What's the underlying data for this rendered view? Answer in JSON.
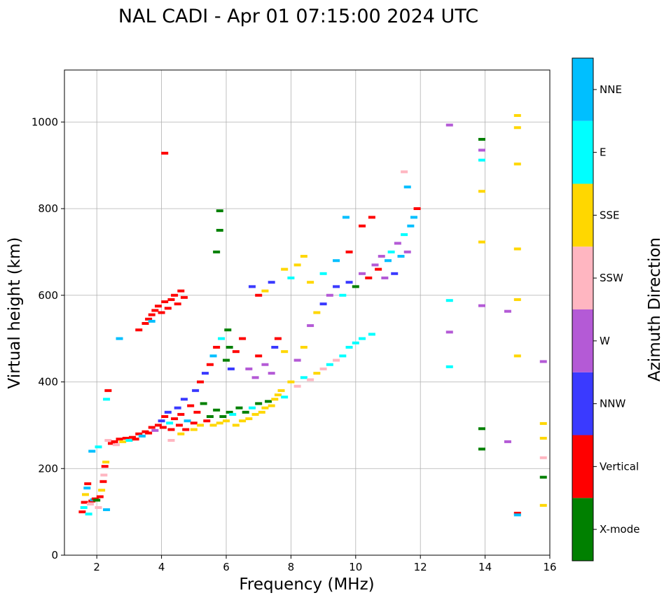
{
  "chart_data": {
    "type": "scatter",
    "title": "NAL CADI - Apr 01 07:15:00 2024 UTC",
    "xlabel": "Frequency (MHz)",
    "ylabel": "Virtual height (km)",
    "xlim": [
      1,
      16
    ],
    "ylim": [
      0,
      1120
    ],
    "xticks": [
      2,
      4,
      6,
      8,
      10,
      12,
      14,
      16
    ],
    "yticks": [
      0,
      200,
      400,
      600,
      800,
      1000
    ],
    "grid": true,
    "colorbar": {
      "label": "Azimuth Direction",
      "categories": [
        {
          "name": "X-mode",
          "color": "#008000"
        },
        {
          "name": "Vertical",
          "color": "#ff0000"
        },
        {
          "name": "NNW",
          "color": "#3a3aff"
        },
        {
          "name": "W",
          "color": "#b45ad6"
        },
        {
          "name": "SSW",
          "color": "#ffb6c1"
        },
        {
          "name": "SSE",
          "color": "#ffd700"
        },
        {
          "name": "E",
          "color": "#00ffff"
        },
        {
          "name": "NNE",
          "color": "#00bfff"
        }
      ]
    },
    "points": [
      {
        "x": 1.55,
        "y": 100,
        "d": "Vertical"
      },
      {
        "x": 1.6,
        "y": 110,
        "d": "E"
      },
      {
        "x": 1.62,
        "y": 122,
        "d": "Vertical"
      },
      {
        "x": 1.65,
        "y": 140,
        "d": "SSE"
      },
      {
        "x": 1.7,
        "y": 155,
        "d": "NNE"
      },
      {
        "x": 1.72,
        "y": 165,
        "d": "Vertical"
      },
      {
        "x": 1.75,
        "y": 95,
        "d": "E"
      },
      {
        "x": 1.8,
        "y": 118,
        "d": "SSW"
      },
      {
        "x": 1.85,
        "y": 125,
        "d": "Vertical"
      },
      {
        "x": 1.9,
        "y": 128,
        "d": "NNE"
      },
      {
        "x": 1.95,
        "y": 130,
        "d": "Vertical"
      },
      {
        "x": 2.0,
        "y": 127,
        "d": "X-mode"
      },
      {
        "x": 2.05,
        "y": 110,
        "d": "SSW"
      },
      {
        "x": 2.1,
        "y": 135,
        "d": "Vertical"
      },
      {
        "x": 2.15,
        "y": 150,
        "d": "SSE"
      },
      {
        "x": 2.2,
        "y": 170,
        "d": "Vertical"
      },
      {
        "x": 2.22,
        "y": 185,
        "d": "SSW"
      },
      {
        "x": 2.25,
        "y": 205,
        "d": "Vertical"
      },
      {
        "x": 2.28,
        "y": 215,
        "d": "SSE"
      },
      {
        "x": 2.3,
        "y": 105,
        "d": "NNE"
      },
      {
        "x": 1.85,
        "y": 240,
        "d": "NNE"
      },
      {
        "x": 2.05,
        "y": 250,
        "d": "E"
      },
      {
        "x": 2.3,
        "y": 360,
        "d": "E"
      },
      {
        "x": 2.35,
        "y": 380,
        "d": "Vertical"
      },
      {
        "x": 2.35,
        "y": 265,
        "d": "SSW"
      },
      {
        "x": 2.45,
        "y": 258,
        "d": "Vertical"
      },
      {
        "x": 2.55,
        "y": 262,
        "d": "Vertical"
      },
      {
        "x": 2.6,
        "y": 255,
        "d": "SSW"
      },
      {
        "x": 2.7,
        "y": 268,
        "d": "Vertical"
      },
      {
        "x": 2.8,
        "y": 262,
        "d": "SSE"
      },
      {
        "x": 2.9,
        "y": 270,
        "d": "Vertical"
      },
      {
        "x": 3.0,
        "y": 265,
        "d": "E"
      },
      {
        "x": 3.1,
        "y": 272,
        "d": "Vertical"
      },
      {
        "x": 3.2,
        "y": 268,
        "d": "Vertical"
      },
      {
        "x": 3.3,
        "y": 280,
        "d": "Vertical"
      },
      {
        "x": 3.4,
        "y": 275,
        "d": "NNE"
      },
      {
        "x": 3.5,
        "y": 285,
        "d": "Vertical"
      },
      {
        "x": 3.6,
        "y": 282,
        "d": "Vertical"
      },
      {
        "x": 3.7,
        "y": 295,
        "d": "Vertical"
      },
      {
        "x": 3.8,
        "y": 288,
        "d": "W"
      },
      {
        "x": 3.9,
        "y": 300,
        "d": "Vertical"
      },
      {
        "x": 4.0,
        "y": 310,
        "d": "NNW"
      },
      {
        "x": 4.05,
        "y": 295,
        "d": "Vertical"
      },
      {
        "x": 4.1,
        "y": 320,
        "d": "Vertical"
      },
      {
        "x": 4.2,
        "y": 330,
        "d": "NNW"
      },
      {
        "x": 4.25,
        "y": 305,
        "d": "E"
      },
      {
        "x": 4.3,
        "y": 290,
        "d": "Vertical"
      },
      {
        "x": 4.4,
        "y": 315,
        "d": "Vertical"
      },
      {
        "x": 4.5,
        "y": 340,
        "d": "NNW"
      },
      {
        "x": 4.55,
        "y": 300,
        "d": "Vertical"
      },
      {
        "x": 4.6,
        "y": 325,
        "d": "Vertical"
      },
      {
        "x": 4.7,
        "y": 360,
        "d": "NNW"
      },
      {
        "x": 4.75,
        "y": 290,
        "d": "Vertical"
      },
      {
        "x": 4.8,
        "y": 310,
        "d": "NNE"
      },
      {
        "x": 4.9,
        "y": 345,
        "d": "Vertical"
      },
      {
        "x": 5.0,
        "y": 305,
        "d": "Vertical"
      },
      {
        "x": 5.05,
        "y": 380,
        "d": "NNW"
      },
      {
        "x": 5.1,
        "y": 330,
        "d": "Vertical"
      },
      {
        "x": 5.2,
        "y": 300,
        "d": "SSE"
      },
      {
        "x": 5.3,
        "y": 350,
        "d": "X-mode"
      },
      {
        "x": 5.4,
        "y": 310,
        "d": "Vertical"
      },
      {
        "x": 5.5,
        "y": 320,
        "d": "X-mode"
      },
      {
        "x": 5.6,
        "y": 300,
        "d": "SSE"
      },
      {
        "x": 5.7,
        "y": 335,
        "d": "X-mode"
      },
      {
        "x": 5.8,
        "y": 305,
        "d": "SSE"
      },
      {
        "x": 5.9,
        "y": 320,
        "d": "X-mode"
      },
      {
        "x": 6.0,
        "y": 310,
        "d": "SSE"
      },
      {
        "x": 6.1,
        "y": 330,
        "d": "X-mode"
      },
      {
        "x": 6.2,
        "y": 325,
        "d": "E"
      },
      {
        "x": 6.3,
        "y": 300,
        "d": "SSE"
      },
      {
        "x": 6.4,
        "y": 340,
        "d": "X-mode"
      },
      {
        "x": 6.5,
        "y": 310,
        "d": "SSE"
      },
      {
        "x": 6.6,
        "y": 330,
        "d": "X-mode"
      },
      {
        "x": 6.7,
        "y": 315,
        "d": "SSE"
      },
      {
        "x": 6.8,
        "y": 340,
        "d": "E"
      },
      {
        "x": 6.9,
        "y": 325,
        "d": "SSE"
      },
      {
        "x": 7.0,
        "y": 350,
        "d": "X-mode"
      },
      {
        "x": 7.1,
        "y": 330,
        "d": "SSE"
      },
      {
        "x": 7.2,
        "y": 340,
        "d": "SSE"
      },
      {
        "x": 7.3,
        "y": 355,
        "d": "X-mode"
      },
      {
        "x": 7.4,
        "y": 345,
        "d": "SSE"
      },
      {
        "x": 7.5,
        "y": 360,
        "d": "SSE"
      },
      {
        "x": 7.6,
        "y": 370,
        "d": "SSE"
      },
      {
        "x": 7.7,
        "y": 380,
        "d": "SSE"
      },
      {
        "x": 7.8,
        "y": 365,
        "d": "E"
      },
      {
        "x": 4.3,
        "y": 265,
        "d": "SSW"
      },
      {
        "x": 4.6,
        "y": 280,
        "d": "SSE"
      },
      {
        "x": 5.0,
        "y": 290,
        "d": "SSE"
      },
      {
        "x": 5.2,
        "y": 400,
        "d": "Vertical"
      },
      {
        "x": 5.35,
        "y": 420,
        "d": "NNW"
      },
      {
        "x": 5.5,
        "y": 440,
        "d": "Vertical"
      },
      {
        "x": 5.6,
        "y": 460,
        "d": "NNE"
      },
      {
        "x": 5.7,
        "y": 480,
        "d": "Vertical"
      },
      {
        "x": 5.85,
        "y": 500,
        "d": "E"
      },
      {
        "x": 6.0,
        "y": 450,
        "d": "X-mode"
      },
      {
        "x": 6.05,
        "y": 520,
        "d": "X-mode"
      },
      {
        "x": 6.1,
        "y": 480,
        "d": "X-mode"
      },
      {
        "x": 6.15,
        "y": 430,
        "d": "NNW"
      },
      {
        "x": 6.3,
        "y": 470,
        "d": "Vertical"
      },
      {
        "x": 6.5,
        "y": 500,
        "d": "Vertical"
      },
      {
        "x": 6.7,
        "y": 430,
        "d": "W"
      },
      {
        "x": 6.9,
        "y": 410,
        "d": "W"
      },
      {
        "x": 7.0,
        "y": 460,
        "d": "Vertical"
      },
      {
        "x": 7.2,
        "y": 440,
        "d": "W"
      },
      {
        "x": 7.4,
        "y": 420,
        "d": "W"
      },
      {
        "x": 7.5,
        "y": 480,
        "d": "NNW"
      },
      {
        "x": 7.6,
        "y": 500,
        "d": "Vertical"
      },
      {
        "x": 7.8,
        "y": 470,
        "d": "SSE"
      },
      {
        "x": 8.0,
        "y": 400,
        "d": "SSE"
      },
      {
        "x": 8.2,
        "y": 390,
        "d": "SSW"
      },
      {
        "x": 8.4,
        "y": 410,
        "d": "E"
      },
      {
        "x": 8.6,
        "y": 405,
        "d": "SSW"
      },
      {
        "x": 8.8,
        "y": 420,
        "d": "SSE"
      },
      {
        "x": 9.0,
        "y": 430,
        "d": "SSW"
      },
      {
        "x": 9.2,
        "y": 440,
        "d": "E"
      },
      {
        "x": 9.4,
        "y": 450,
        "d": "SSW"
      },
      {
        "x": 9.6,
        "y": 460,
        "d": "E"
      },
      {
        "x": 9.8,
        "y": 480,
        "d": "E"
      },
      {
        "x": 10.0,
        "y": 490,
        "d": "E"
      },
      {
        "x": 10.2,
        "y": 500,
        "d": "E"
      },
      {
        "x": 10.5,
        "y": 510,
        "d": "E"
      },
      {
        "x": 8.2,
        "y": 450,
        "d": "W"
      },
      {
        "x": 8.4,
        "y": 480,
        "d": "SSE"
      },
      {
        "x": 8.6,
        "y": 530,
        "d": "W"
      },
      {
        "x": 8.8,
        "y": 560,
        "d": "SSE"
      },
      {
        "x": 9.0,
        "y": 580,
        "d": "NNW"
      },
      {
        "x": 9.2,
        "y": 600,
        "d": "W"
      },
      {
        "x": 9.4,
        "y": 620,
        "d": "NNW"
      },
      {
        "x": 9.6,
        "y": 600,
        "d": "E"
      },
      {
        "x": 9.8,
        "y": 630,
        "d": "NNW"
      },
      {
        "x": 10.0,
        "y": 620,
        "d": "X-mode"
      },
      {
        "x": 10.2,
        "y": 650,
        "d": "W"
      },
      {
        "x": 10.4,
        "y": 640,
        "d": "Vertical"
      },
      {
        "x": 10.6,
        "y": 670,
        "d": "W"
      },
      {
        "x": 10.7,
        "y": 660,
        "d": "Vertical"
      },
      {
        "x": 10.8,
        "y": 690,
        "d": "W"
      },
      {
        "x": 10.9,
        "y": 640,
        "d": "W"
      },
      {
        "x": 11.0,
        "y": 680,
        "d": "NNE"
      },
      {
        "x": 11.1,
        "y": 700,
        "d": "E"
      },
      {
        "x": 11.2,
        "y": 650,
        "d": "NNW"
      },
      {
        "x": 11.3,
        "y": 720,
        "d": "W"
      },
      {
        "x": 11.4,
        "y": 690,
        "d": "NNE"
      },
      {
        "x": 11.5,
        "y": 740,
        "d": "E"
      },
      {
        "x": 11.6,
        "y": 700,
        "d": "W"
      },
      {
        "x": 11.7,
        "y": 760,
        "d": "NNE"
      },
      {
        "x": 11.8,
        "y": 780,
        "d": "NNE"
      },
      {
        "x": 11.9,
        "y": 800,
        "d": "Vertical"
      },
      {
        "x": 11.6,
        "y": 850,
        "d": "NNE"
      },
      {
        "x": 11.5,
        "y": 885,
        "d": "SSW"
      },
      {
        "x": 10.5,
        "y": 780,
        "d": "Vertical"
      },
      {
        "x": 10.2,
        "y": 760,
        "d": "Vertical"
      },
      {
        "x": 9.7,
        "y": 780,
        "d": "NNE"
      },
      {
        "x": 8.4,
        "y": 690,
        "d": "SSE"
      },
      {
        "x": 8.2,
        "y": 670,
        "d": "SSE"
      },
      {
        "x": 8.0,
        "y": 640,
        "d": "E"
      },
      {
        "x": 7.8,
        "y": 660,
        "d": "SSE"
      },
      {
        "x": 7.4,
        "y": 630,
        "d": "NNW"
      },
      {
        "x": 7.2,
        "y": 610,
        "d": "SSE"
      },
      {
        "x": 7.0,
        "y": 600,
        "d": "Vertical"
      },
      {
        "x": 6.8,
        "y": 620,
        "d": "NNW"
      },
      {
        "x": 8.6,
        "y": 630,
        "d": "SSE"
      },
      {
        "x": 9.0,
        "y": 650,
        "d": "E"
      },
      {
        "x": 9.4,
        "y": 680,
        "d": "NNE"
      },
      {
        "x": 9.8,
        "y": 700,
        "d": "Vertical"
      },
      {
        "x": 3.3,
        "y": 520,
        "d": "Vertical"
      },
      {
        "x": 3.5,
        "y": 535,
        "d": "Vertical"
      },
      {
        "x": 3.6,
        "y": 545,
        "d": "Vertical"
      },
      {
        "x": 3.7,
        "y": 555,
        "d": "Vertical"
      },
      {
        "x": 3.8,
        "y": 565,
        "d": "Vertical"
      },
      {
        "x": 3.9,
        "y": 575,
        "d": "Vertical"
      },
      {
        "x": 4.0,
        "y": 560,
        "d": "Vertical"
      },
      {
        "x": 4.1,
        "y": 585,
        "d": "Vertical"
      },
      {
        "x": 4.2,
        "y": 570,
        "d": "Vertical"
      },
      {
        "x": 4.3,
        "y": 590,
        "d": "Vertical"
      },
      {
        "x": 4.4,
        "y": 600,
        "d": "Vertical"
      },
      {
        "x": 4.5,
        "y": 580,
        "d": "Vertical"
      },
      {
        "x": 4.6,
        "y": 610,
        "d": "Vertical"
      },
      {
        "x": 4.7,
        "y": 595,
        "d": "Vertical"
      },
      {
        "x": 3.7,
        "y": 540,
        "d": "NNE"
      },
      {
        "x": 2.7,
        "y": 500,
        "d": "NNE"
      },
      {
        "x": 4.1,
        "y": 928,
        "d": "Vertical"
      },
      {
        "x": 5.8,
        "y": 795,
        "d": "X-mode"
      },
      {
        "x": 5.8,
        "y": 750,
        "d": "X-mode"
      },
      {
        "x": 5.7,
        "y": 700,
        "d": "X-mode"
      },
      {
        "x": 12.9,
        "y": 993,
        "d": "W"
      },
      {
        "x": 12.9,
        "y": 588,
        "d": "E"
      },
      {
        "x": 12.9,
        "y": 515,
        "d": "W"
      },
      {
        "x": 12.9,
        "y": 435,
        "d": "E"
      },
      {
        "x": 13.9,
        "y": 960,
        "d": "X-mode"
      },
      {
        "x": 13.9,
        "y": 935,
        "d": "W"
      },
      {
        "x": 13.9,
        "y": 912,
        "d": "E"
      },
      {
        "x": 13.9,
        "y": 840,
        "d": "SSE"
      },
      {
        "x": 13.9,
        "y": 723,
        "d": "SSE"
      },
      {
        "x": 13.9,
        "y": 576,
        "d": "W"
      },
      {
        "x": 13.9,
        "y": 292,
        "d": "X-mode"
      },
      {
        "x": 13.9,
        "y": 245,
        "d": "X-mode"
      },
      {
        "x": 15.0,
        "y": 1015,
        "d": "SSE"
      },
      {
        "x": 15.0,
        "y": 987,
        "d": "SSE"
      },
      {
        "x": 15.0,
        "y": 903,
        "d": "SSE"
      },
      {
        "x": 15.0,
        "y": 707,
        "d": "SSE"
      },
      {
        "x": 15.0,
        "y": 590,
        "d": "SSE"
      },
      {
        "x": 15.0,
        "y": 460,
        "d": "SSE"
      },
      {
        "x": 15.0,
        "y": 97,
        "d": "Vertical"
      },
      {
        "x": 15.0,
        "y": 93,
        "d": "NNE"
      },
      {
        "x": 14.7,
        "y": 563,
        "d": "W"
      },
      {
        "x": 14.7,
        "y": 262,
        "d": "W"
      },
      {
        "x": 15.8,
        "y": 447,
        "d": "W"
      },
      {
        "x": 15.8,
        "y": 304,
        "d": "SSE"
      },
      {
        "x": 15.8,
        "y": 270,
        "d": "SSE"
      },
      {
        "x": 15.8,
        "y": 225,
        "d": "SSW"
      },
      {
        "x": 15.8,
        "y": 180,
        "d": "X-mode"
      },
      {
        "x": 15.8,
        "y": 115,
        "d": "SSE"
      }
    ]
  }
}
